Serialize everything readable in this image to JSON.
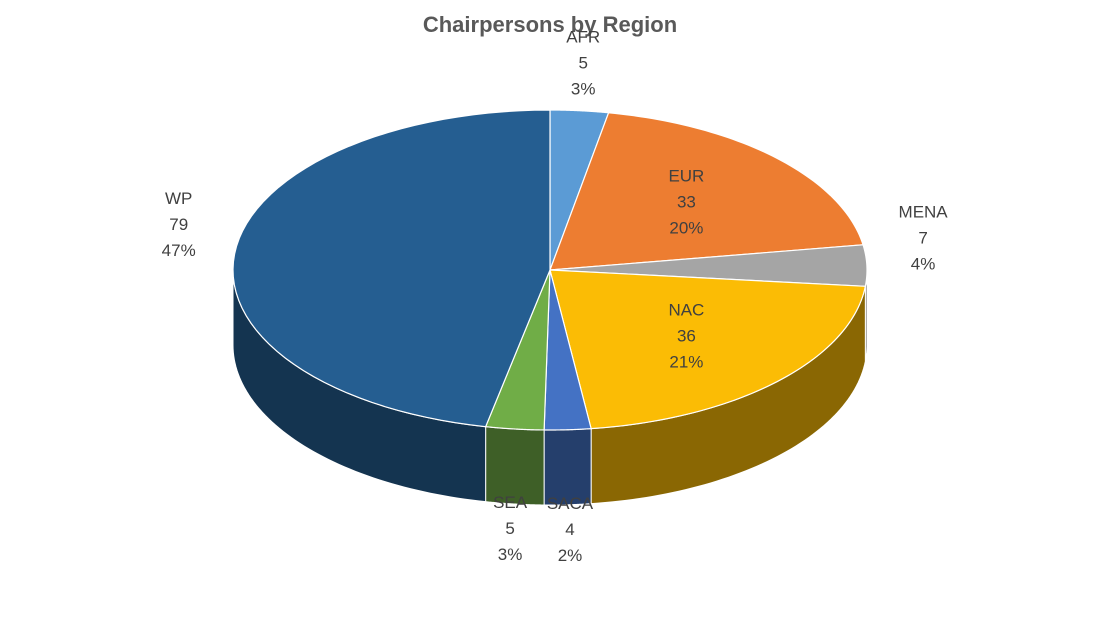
{
  "chart_data": {
    "type": "pie3d",
    "title": "Chairpersons by Region",
    "categories": [
      "AFR",
      "EUR",
      "MENA",
      "NAC",
      "SACA",
      "SEA",
      "WP"
    ],
    "values": [
      5,
      33,
      7,
      36,
      4,
      5,
      79
    ],
    "percent_labels": [
      "3%",
      "20%",
      "4%",
      "21%",
      "2%",
      "3%",
      "47%"
    ],
    "colors": [
      "#5b9bd5",
      "#ed7d31",
      "#a5a5a5",
      "#fbbc05",
      "#4472c4",
      "#70ad47",
      "#255e91"
    ]
  }
}
